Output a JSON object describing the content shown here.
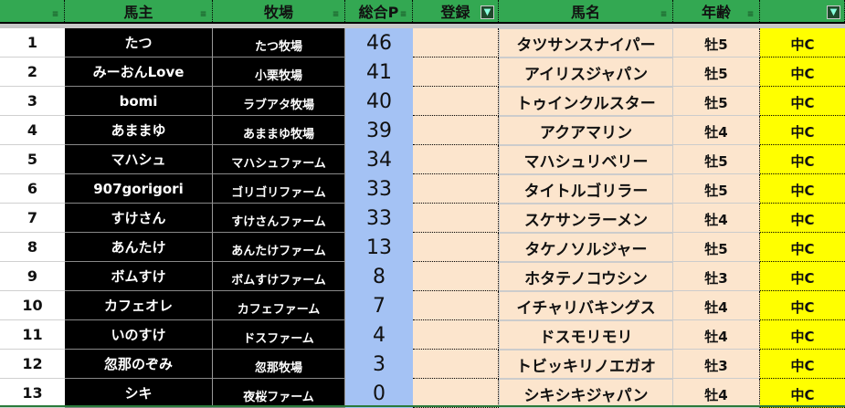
{
  "headers": [
    {
      "label": "",
      "filter": "sort"
    },
    {
      "label": "馬主",
      "filter": "sort"
    },
    {
      "label": "牧場",
      "filter": "sort"
    },
    {
      "label": "総合P",
      "filter": "sort"
    },
    {
      "label": "登録",
      "filter": "active"
    },
    {
      "label": "馬名",
      "filter": "sort"
    },
    {
      "label": "年齢",
      "filter": "sort"
    },
    {
      "label": "",
      "filter": "active"
    }
  ],
  "rows": [
    {
      "rank": "1",
      "owner": "たつ",
      "farm": "たつ牧場",
      "points": "46",
      "reg": "",
      "horse": "タツサンスナイパー",
      "age": "牡5",
      "cls": "中C"
    },
    {
      "rank": "2",
      "owner": "みーおんLove",
      "farm": "小栗牧場",
      "points": "41",
      "reg": "",
      "horse": "アイリスジャパン",
      "age": "牡5",
      "cls": "中C"
    },
    {
      "rank": "3",
      "owner": "bomi",
      "farm": "ラブアタ牧場",
      "points": "40",
      "reg": "",
      "horse": "トゥインクルスター",
      "age": "牡5",
      "cls": "中C"
    },
    {
      "rank": "4",
      "owner": "あままゆ",
      "farm": "あままゆ牧場",
      "points": "39",
      "reg": "",
      "horse": "アクアマリン",
      "age": "牡4",
      "cls": "中C"
    },
    {
      "rank": "5",
      "owner": "マハシュ",
      "farm": "マハシュファーム",
      "points": "34",
      "reg": "",
      "horse": "マハシュリベリー",
      "age": "牡5",
      "cls": "中C"
    },
    {
      "rank": "6",
      "owner": "907gorigori",
      "farm": "ゴリゴリファーム",
      "points": "33",
      "reg": "",
      "horse": "タイトルゴリラー",
      "age": "牡5",
      "cls": "中C"
    },
    {
      "rank": "7",
      "owner": "すけさん",
      "farm": "すけさんファーム",
      "points": "33",
      "reg": "",
      "horse": "スケサンラーメン",
      "age": "牡4",
      "cls": "中C"
    },
    {
      "rank": "8",
      "owner": "あんたけ",
      "farm": "あんたけファーム",
      "points": "13",
      "reg": "",
      "horse": "タケノソルジャー",
      "age": "牡5",
      "cls": "中C"
    },
    {
      "rank": "9",
      "owner": "ボムすけ",
      "farm": "ボムすけファーム",
      "points": "8",
      "reg": "",
      "horse": "ホタテノコウシン",
      "age": "牡3",
      "cls": "中C"
    },
    {
      "rank": "10",
      "owner": "カフェオレ",
      "farm": "カフェファーム",
      "points": "7",
      "reg": "",
      "horse": "イチャリバキングス",
      "age": "牡4",
      "cls": "中C"
    },
    {
      "rank": "11",
      "owner": "いのすけ",
      "farm": "ドスファーム",
      "points": "4",
      "reg": "",
      "horse": "ドスモリモリ",
      "age": "牡4",
      "cls": "中C"
    },
    {
      "rank": "12",
      "owner": "忽那のぞみ",
      "farm": "忽那牧場",
      "points": "3",
      "reg": "",
      "horse": "トビッキリノエガオ",
      "age": "牡3",
      "cls": "中C"
    },
    {
      "rank": "13",
      "owner": "シキ",
      "farm": "夜桜ファーム",
      "points": "0",
      "reg": "",
      "horse": "シキシキジャパン",
      "age": "牡4",
      "cls": "中C"
    }
  ]
}
